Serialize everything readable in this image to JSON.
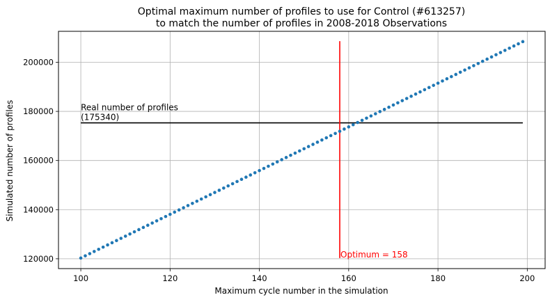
{
  "chart_data": {
    "type": "scatter",
    "title_line1": "Optimal maximum number of profiles to use for Control (#613257)",
    "title_line2": "to match the number of profiles in 2008-2018 Observations",
    "xlabel": "Maximum cycle number in the simulation",
    "ylabel": "Simulated number of profiles",
    "xlim": [
      95,
      204
    ],
    "ylim": [
      116000,
      212600
    ],
    "xticks": [
      100,
      120,
      140,
      160,
      180,
      200
    ],
    "yticks": [
      120000,
      140000,
      160000,
      180000,
      200000
    ],
    "xtick_labels": [
      "100",
      "120",
      "140",
      "160",
      "180",
      "200"
    ],
    "ytick_labels": [
      "120000",
      "140000",
      "160000",
      "180000",
      "200000"
    ],
    "grid": true,
    "series": [
      {
        "x_start": 100,
        "x_end": 199,
        "x_step": 1,
        "y_start": 120300,
        "y_end": 208400,
        "color": "#1f77b4"
      }
    ],
    "reference_line": {
      "y": 175340,
      "x_range": [
        100,
        199
      ],
      "color": "#000000",
      "label_line1": "Real number of profiles",
      "label_line2": "(175340)"
    },
    "optimum_line": {
      "x": 158,
      "y_range": [
        120300,
        208600
      ],
      "color": "#ff0000",
      "label": "Optimum = 158"
    }
  }
}
